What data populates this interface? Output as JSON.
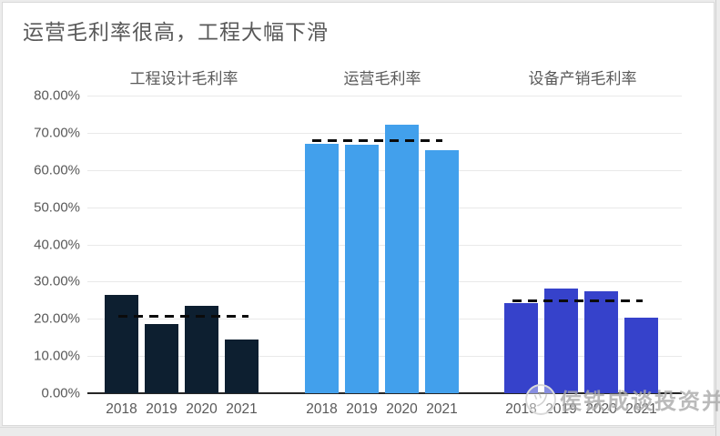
{
  "title": "运营毛利率很高，工程大幅下滑",
  "watermark": {
    "text": "侯铁成谈投资并购",
    "logo_icon": "smiley-circle-logo"
  },
  "chart_data": {
    "type": "bar",
    "title": "运营毛利率很高，工程大幅下滑",
    "categories": [
      "2018",
      "2019",
      "2020",
      "2021"
    ],
    "groups": [
      {
        "label": "工程设计毛利率",
        "color": "#0d1f30",
        "panel_bg": "#f6f6f7",
        "values": [
          26.3,
          18.5,
          23.6,
          14.5
        ],
        "avg_line": 20.7
      },
      {
        "label": "运营毛利率",
        "color": "#42a0ec",
        "panel_bg": "#ffffff",
        "values": [
          67.1,
          66.8,
          72.2,
          65.3
        ],
        "avg_line": 67.9
      },
      {
        "label": "设备产销毛利率",
        "color": "#3642cb",
        "panel_bg": "#f6f6f7",
        "values": [
          24.3,
          28.2,
          27.3,
          20.3
        ],
        "avg_line": 25.0
      }
    ],
    "y_axis": {
      "ticks": [
        "80.00%",
        "70.00%",
        "60.00%",
        "50.00%",
        "40.00%",
        "30.00%",
        "20.00%",
        "10.00%",
        "0.00%"
      ],
      "min": 0,
      "max": 80,
      "step": 10,
      "unit": "%"
    },
    "ylim": [
      0,
      80
    ],
    "grid": true,
    "annotation_style": "dashed black average line per group",
    "colors": {
      "title_text": "#595959",
      "axis_text": "#595959",
      "gridline": "#e9e9e9",
      "axis_line": "#262626",
      "dash_line": "#0b0b0b"
    }
  }
}
